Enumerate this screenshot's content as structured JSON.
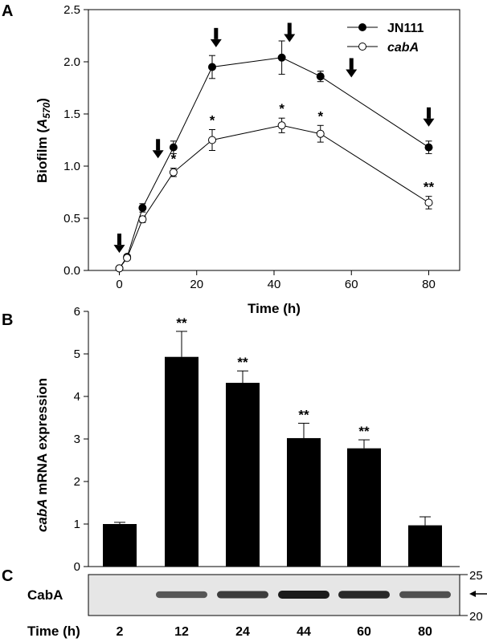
{
  "panels": {
    "a": "A",
    "b": "B",
    "c": "C"
  },
  "chart_data": [
    {
      "type": "line",
      "xlabel": "Time (h)",
      "ylabel": {
        "main": "Biofilm (",
        "italic": "A",
        "sub": "570",
        "end": ")"
      },
      "xlim": [
        -8,
        88
      ],
      "ylim": [
        0,
        2.5
      ],
      "xticks": [
        "0",
        "20",
        "40",
        "60",
        "80"
      ],
      "yticks": [
        "0.0",
        "0.5",
        "1.0",
        "1.5",
        "2.0",
        "2.5"
      ],
      "legend_position": "top-right",
      "series": [
        {
          "name": "JN111",
          "marker": "filled-circle",
          "x": [
            0,
            2,
            6,
            14,
            24,
            42,
            52,
            80
          ],
          "y": [
            0.02,
            0.13,
            0.6,
            1.18,
            1.95,
            2.04,
            1.86,
            1.18
          ],
          "err": [
            0.01,
            0.02,
            0.04,
            0.06,
            0.11,
            0.16,
            0.05,
            0.06
          ]
        },
        {
          "name": "cabA",
          "marker": "open-circle",
          "italic_name": true,
          "x": [
            0,
            2,
            6,
            14,
            24,
            42,
            52,
            80
          ],
          "y": [
            0.02,
            0.12,
            0.49,
            0.94,
            1.25,
            1.39,
            1.31,
            0.65
          ],
          "err": [
            0.01,
            0.02,
            0.03,
            0.04,
            0.1,
            0.07,
            0.08,
            0.06
          ]
        }
      ],
      "significance": [
        {
          "x": 14,
          "label": "*"
        },
        {
          "x": 24,
          "label": "*"
        },
        {
          "x": 42,
          "label": "*"
        },
        {
          "x": 52,
          "label": "*"
        },
        {
          "x": 80,
          "label": "**"
        }
      ],
      "arrows_at_x": [
        0,
        10,
        25,
        44,
        60,
        80
      ]
    },
    {
      "type": "bar",
      "ylabel": {
        "italic": "cabA",
        "rest": " mRNA expression"
      },
      "ylim": [
        0,
        6
      ],
      "yticks": [
        "0",
        "1",
        "2",
        "3",
        "4",
        "5",
        "6"
      ],
      "values": [
        1.0,
        4.93,
        4.32,
        3.02,
        2.78,
        0.97
      ],
      "err": [
        0.04,
        0.6,
        0.28,
        0.35,
        0.2,
        0.2
      ],
      "significance": [
        "",
        "**",
        "**",
        "**",
        "**",
        ""
      ],
      "bar_color": "#000000"
    }
  ],
  "blot": {
    "row_label": "CabA",
    "time_label": "Time (h)",
    "lanes": [
      "2",
      "12",
      "24",
      "44",
      "60",
      "80"
    ],
    "band_intensity": [
      0.0,
      0.55,
      0.75,
      1.0,
      0.9,
      0.6
    ],
    "markers": [
      "25",
      "20"
    ]
  }
}
